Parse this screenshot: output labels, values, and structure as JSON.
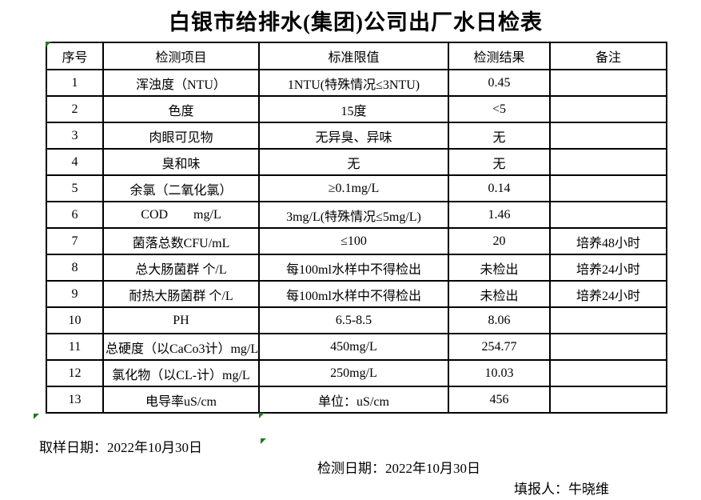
{
  "title": "白银市给排水(集团)公司出厂水日检表",
  "table": {
    "headers": [
      "序号",
      "检测项目",
      "标准限值",
      "检测结果",
      "备注"
    ],
    "rows": [
      [
        "1",
        "浑浊度（NTU）",
        "1NTU(特殊情况≤3NTU)",
        "0.45",
        ""
      ],
      [
        "2",
        "色度",
        "15度",
        "<5",
        ""
      ],
      [
        "3",
        "肉眼可见物",
        "无异臭、异味",
        "无",
        ""
      ],
      [
        "4",
        "臭和味",
        "无",
        "无",
        ""
      ],
      [
        "5",
        "余氯（二氧化氯）",
        "≥0.1mg/L",
        "0.14",
        ""
      ],
      [
        "6",
        "COD        mg/L",
        "3mg/L(特殊情况≤5mg/L)",
        "1.46",
        ""
      ],
      [
        "7",
        "菌落总数CFU/mL",
        "≤100",
        "20",
        "培养48小时"
      ],
      [
        "8",
        "总大肠菌群 个/L",
        "每100ml水样中不得检出",
        "未检出",
        "培养24小时"
      ],
      [
        "9",
        "耐热大肠菌群 个/L",
        "每100ml水样中不得检出",
        "未检出",
        "培养24小时"
      ],
      [
        "10",
        "PH",
        "6.5-8.5",
        "8.06",
        ""
      ],
      [
        "11",
        "总硬度（以CaCo3计）mg/L",
        "450mg/L",
        "254.77",
        ""
      ],
      [
        "12",
        "氯化物（以CL-计）mg/L",
        "250mg/L",
        "10.03",
        ""
      ],
      [
        "13",
        "电导率uS/cm",
        "单位：uS/cm",
        "456",
        ""
      ]
    ]
  },
  "footer": {
    "sampling_date": "取样日期：2022年10月30日",
    "test_date": "检测日期：2022年10月30日",
    "reporter": "填报人：牛晓维"
  },
  "colors": {
    "text": "#000000",
    "table_border": "#000000",
    "background": "#ffffff",
    "excel_marker_green": "#1e7e1e"
  },
  "icons": {
    "excel_corner_marker": "green-triangle"
  }
}
